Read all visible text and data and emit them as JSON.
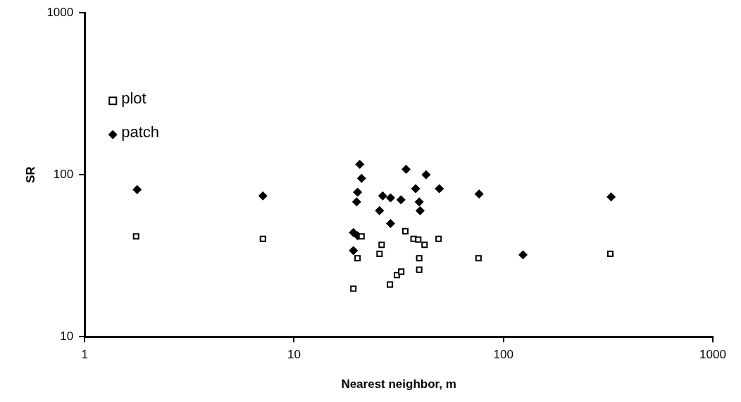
{
  "chart_data": {
    "type": "scatter",
    "xlabel": "Nearest neighbor, m",
    "ylabel": "SR",
    "log": "xy",
    "xlim": [
      1,
      1000
    ],
    "ylim": [
      10,
      1000
    ],
    "xticks": [
      1,
      10,
      100,
      1000
    ],
    "yticks": [
      10,
      100,
      1000
    ],
    "grid": false,
    "legend": "top left",
    "series": [
      {
        "name": "plot",
        "color": "#000000",
        "marker": "square",
        "x": [
          1.76,
          7.1,
          21,
          20.1,
          26.2,
          25.6,
          19.2,
          28.7,
          31,
          32.5,
          34,
          37.2,
          39.2,
          42,
          49,
          39.6,
          39.6,
          76,
          324
        ],
        "values": [
          41.6,
          40.2,
          41.6,
          30.5,
          36.9,
          32.5,
          19.8,
          21,
          24,
          25.2,
          44.8,
          40.2,
          39.8,
          36.9,
          40.2,
          30.5,
          25.9,
          30.5,
          32.5
        ]
      },
      {
        "name": "patch",
        "color": "#000000",
        "marker": "diamond",
        "x": [
          1.78,
          7.1,
          20.6,
          21,
          20.1,
          19.9,
          26.5,
          25.6,
          28.9,
          32.4,
          28.9,
          34.3,
          42.7,
          49.4,
          38.1,
          39.6,
          40,
          19.2,
          20.1,
          19.2,
          76.5,
          327,
          124
        ],
        "values": [
          81,
          74,
          116,
          95,
          78,
          68,
          74,
          60,
          72,
          70,
          50,
          108,
          100,
          82,
          82,
          68,
          60,
          44,
          42,
          34,
          76,
          73,
          32
        ]
      }
    ]
  }
}
